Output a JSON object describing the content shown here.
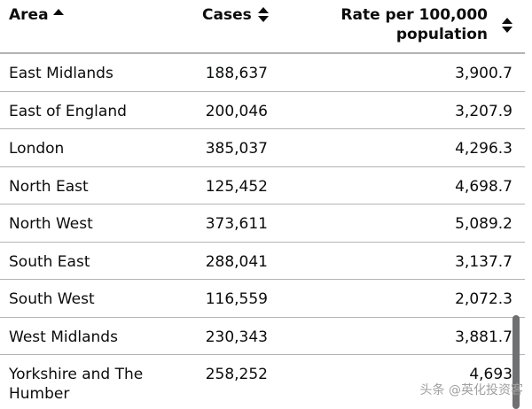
{
  "table": {
    "headers": {
      "area": "Area",
      "cases": "Cases",
      "rate_line1": "Rate per 100,000",
      "rate_line2": "population"
    },
    "rows": [
      {
        "area": "East Midlands",
        "cases": "188,637",
        "rate": "3,900.7"
      },
      {
        "area": "East of England",
        "cases": "200,046",
        "rate": "3,207.9"
      },
      {
        "area": "London",
        "cases": "385,037",
        "rate": "4,296.3"
      },
      {
        "area": "North East",
        "cases": "125,452",
        "rate": "4,698.7"
      },
      {
        "area": "North West",
        "cases": "373,611",
        "rate": "5,089.2"
      },
      {
        "area": "South East",
        "cases": "288,041",
        "rate": "3,137.7"
      },
      {
        "area": "South West",
        "cases": "116,559",
        "rate": "2,072.3"
      },
      {
        "area": "West Midlands",
        "cases": "230,343",
        "rate": "3,881.7"
      },
      {
        "area_line1": "Yorkshire and The",
        "area_line2": "Humber",
        "cases": "258,252",
        "rate": "4,693"
      }
    ]
  },
  "icons": {
    "area_sort": "sort-ascending-icon",
    "cases_sort": "sort-both-icon",
    "rate_sort": "sort-both-icon"
  },
  "watermark": "头条 @英化投资客",
  "colors": {
    "text": "#0b0c0c",
    "divider": "#b1b4b6",
    "scrollbar": "#6f7072"
  }
}
